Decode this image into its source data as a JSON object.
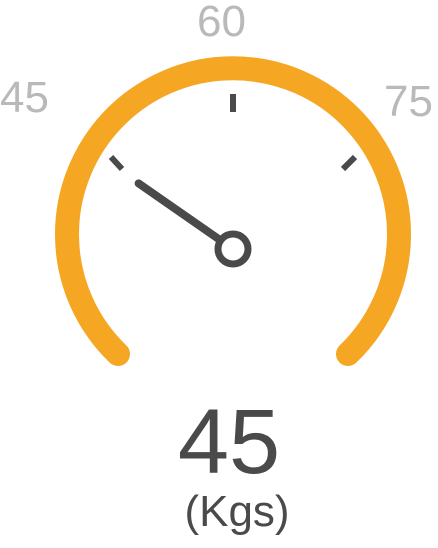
{
  "gauge": {
    "min": 45,
    "max": 75,
    "value": 45,
    "unit": "(Kgs)",
    "display_value": "45",
    "labels": {
      "min": "45",
      "mid": "60",
      "max": "75"
    },
    "colors": {
      "arc": "#F5A623",
      "needle": "#4A4A4A",
      "labels": "#B9B9B9",
      "value_text": "#4A4A4A"
    }
  }
}
